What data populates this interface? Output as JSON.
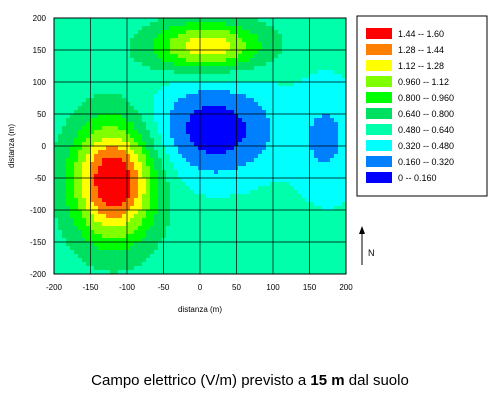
{
  "chart_data": {
    "type": "heatmap",
    "title": "",
    "xlabel": "distanza (m)",
    "ylabel": "distanza (m)",
    "xlim": [
      -200,
      200
    ],
    "ylim": [
      -200,
      200
    ],
    "x_ticks": [
      -200,
      -150,
      -100,
      -50,
      0,
      50,
      100,
      150,
      200
    ],
    "y_ticks": [
      -200,
      -150,
      -100,
      -50,
      0,
      50,
      100,
      150,
      200
    ],
    "grid": true,
    "legend_position": "right",
    "levels": [
      {
        "label": "1.44  --  1.60",
        "min": 1.44,
        "max": 1.6,
        "color": "#ff0000"
      },
      {
        "label": "1.28  --  1.44",
        "min": 1.28,
        "max": 1.44,
        "color": "#ff8000"
      },
      {
        "label": "1.12  --  1.28",
        "min": 1.12,
        "max": 1.28,
        "color": "#ffff00"
      },
      {
        "label": "0.960  --  1.12",
        "min": 0.96,
        "max": 1.12,
        "color": "#80ff00"
      },
      {
        "label": "0.800  --  0.960",
        "min": 0.8,
        "max": 0.96,
        "color": "#00ff00"
      },
      {
        "label": "0.640  --  0.800",
        "min": 0.64,
        "max": 0.8,
        "color": "#00e060"
      },
      {
        "label": "0.480  --  0.640",
        "min": 0.48,
        "max": 0.64,
        "color": "#00ffaa"
      },
      {
        "label": "0.320  --  0.480",
        "min": 0.32,
        "max": 0.48,
        "color": "#00ffff"
      },
      {
        "label": "0.160  --  0.320",
        "min": 0.16,
        "max": 0.32,
        "color": "#0080ff"
      },
      {
        "label": "0  --  0.160",
        "min": 0.0,
        "max": 0.16,
        "color": "#0000ff"
      }
    ],
    "background_value": 0.55,
    "sources": [
      {
        "x": -118,
        "y": -55,
        "sx": 55,
        "sy": 90,
        "amp": 1.1
      },
      {
        "x": 10,
        "y": 155,
        "sx": 75,
        "sy": 38,
        "amp": 0.7
      },
      {
        "x": 20,
        "y": 25,
        "sx": 85,
        "sy": 75,
        "amp": -0.5
      },
      {
        "x": 175,
        "y": 10,
        "sx": 45,
        "sy": 95,
        "amp": -0.25
      }
    ]
  },
  "caption": {
    "prefix": "Campo elettrico (V/m) previsto a ",
    "bold": "15 m",
    "suffix": " dal suolo"
  },
  "north": {
    "label": "N"
  }
}
